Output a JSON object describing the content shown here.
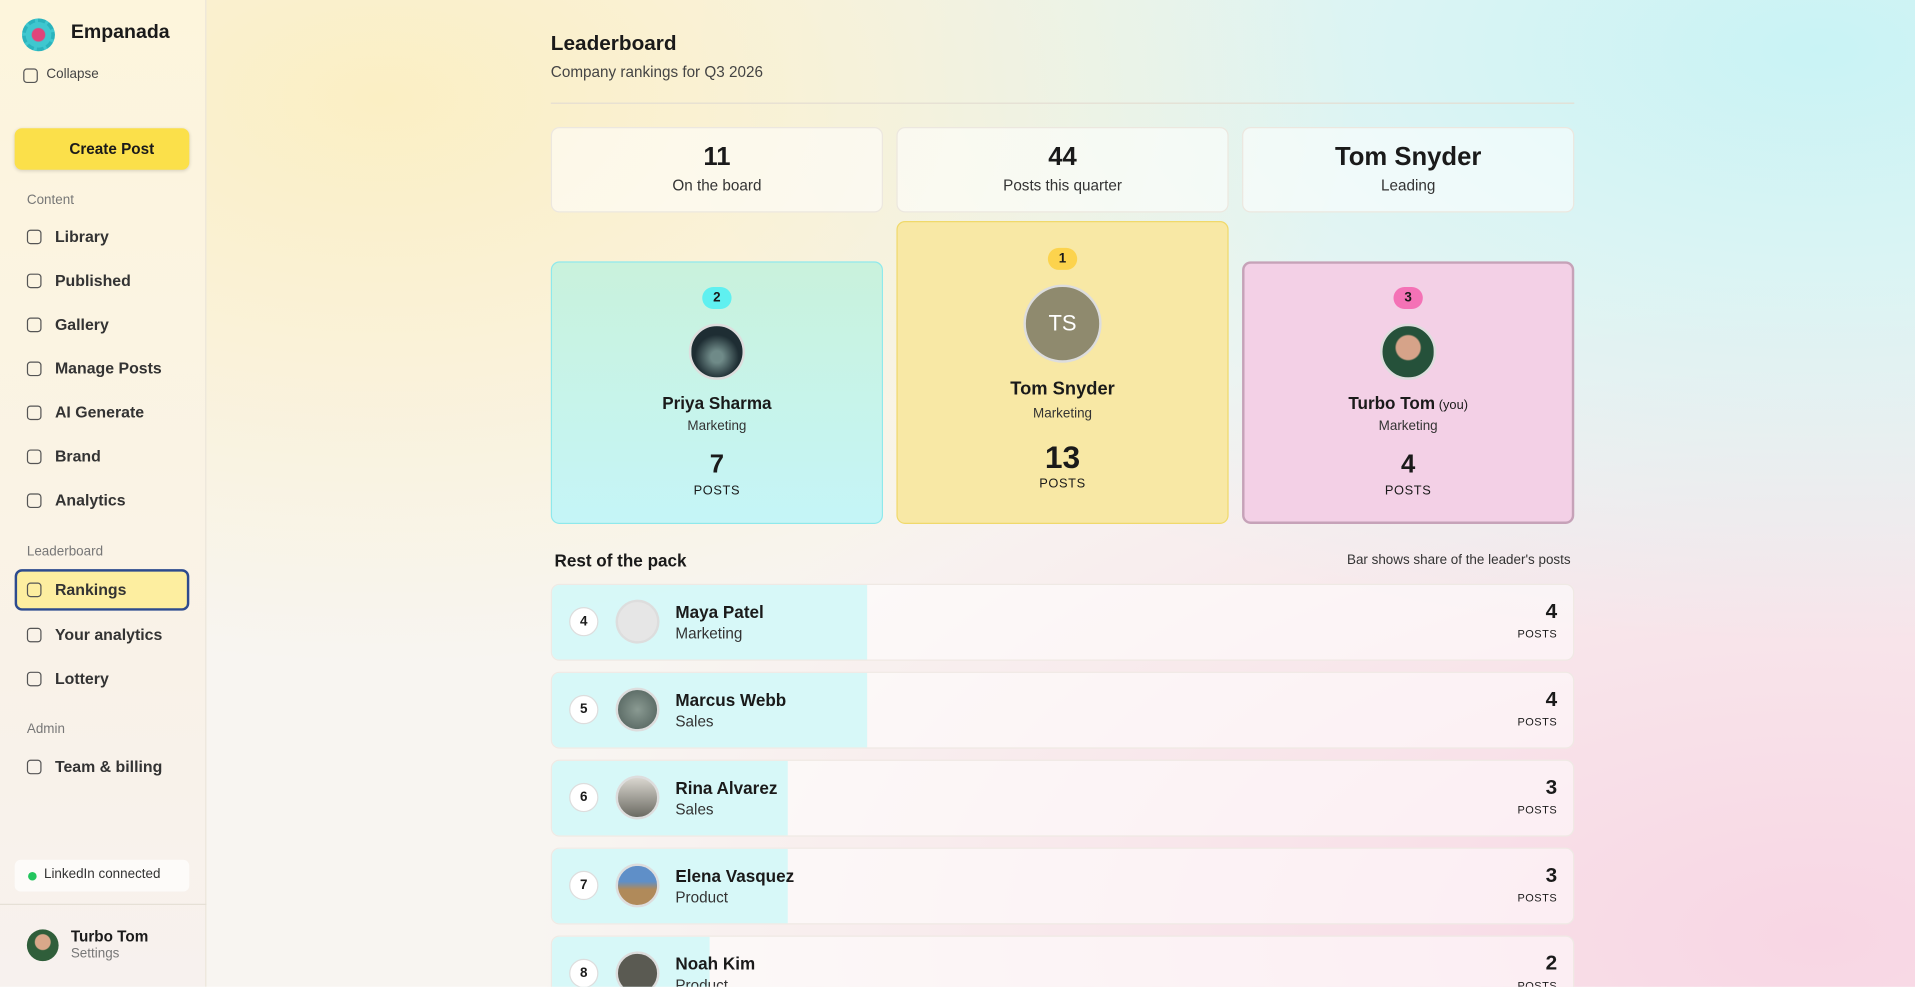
{
  "sidebar": {
    "brand": "Empanada",
    "collapse": "Collapse",
    "create_post": "Create Post",
    "sections": [
      {
        "title": "Content",
        "items": [
          "Library",
          "Published",
          "Gallery",
          "Manage Posts",
          "AI Generate",
          "Brand",
          "Analytics"
        ]
      },
      {
        "title": "Leaderboard",
        "items": [
          "Rankings",
          "Your analytics",
          "Lottery"
        ]
      },
      {
        "title": "Admin",
        "items": [
          "Team & billing"
        ]
      }
    ],
    "status": "LinkedIn connected",
    "user": {
      "name": "Turbo Tom",
      "link": "Settings"
    }
  },
  "header": {
    "title": "Leaderboard",
    "subtitle": "Company rankings for Q3 2026"
  },
  "stats": [
    {
      "value": 11,
      "label": "On the board"
    },
    {
      "value": 44,
      "label": "Posts this quarter"
    },
    {
      "value": "Tom Snyder",
      "label": "Leading"
    }
  ],
  "podium": [
    {
      "rank": 2,
      "name": "Priya Sharma",
      "team": "Marketing",
      "posts": 7,
      "unit": "POSTS"
    },
    {
      "rank": 1,
      "initials": "TS",
      "name": "Tom Snyder",
      "team": "Marketing",
      "posts": 13,
      "unit": "POSTS"
    },
    {
      "rank": 3,
      "name": "Turbo Tom",
      "tag": "(you)",
      "team": "Marketing",
      "posts": 4,
      "unit": "POSTS"
    }
  ],
  "rest": {
    "title": "Rest of the pack",
    "note": "Bar shows share of the leader's posts",
    "rows": [
      {
        "rank": 4,
        "name": "Maya Patel",
        "team": "Marketing",
        "posts": 4,
        "unit": "POSTS"
      },
      {
        "rank": 5,
        "name": "Marcus Webb",
        "team": "Sales",
        "posts": 4,
        "unit": "POSTS"
      },
      {
        "rank": 6,
        "name": "Rina Alvarez",
        "team": "Sales",
        "posts": 3,
        "unit": "POSTS"
      },
      {
        "rank": 7,
        "name": "Elena Vasquez",
        "team": "Product",
        "posts": 3,
        "unit": "POSTS"
      },
      {
        "rank": 8,
        "name": "Noah Kim",
        "team": "Product",
        "posts": 2,
        "unit": "POSTS"
      }
    ]
  }
}
